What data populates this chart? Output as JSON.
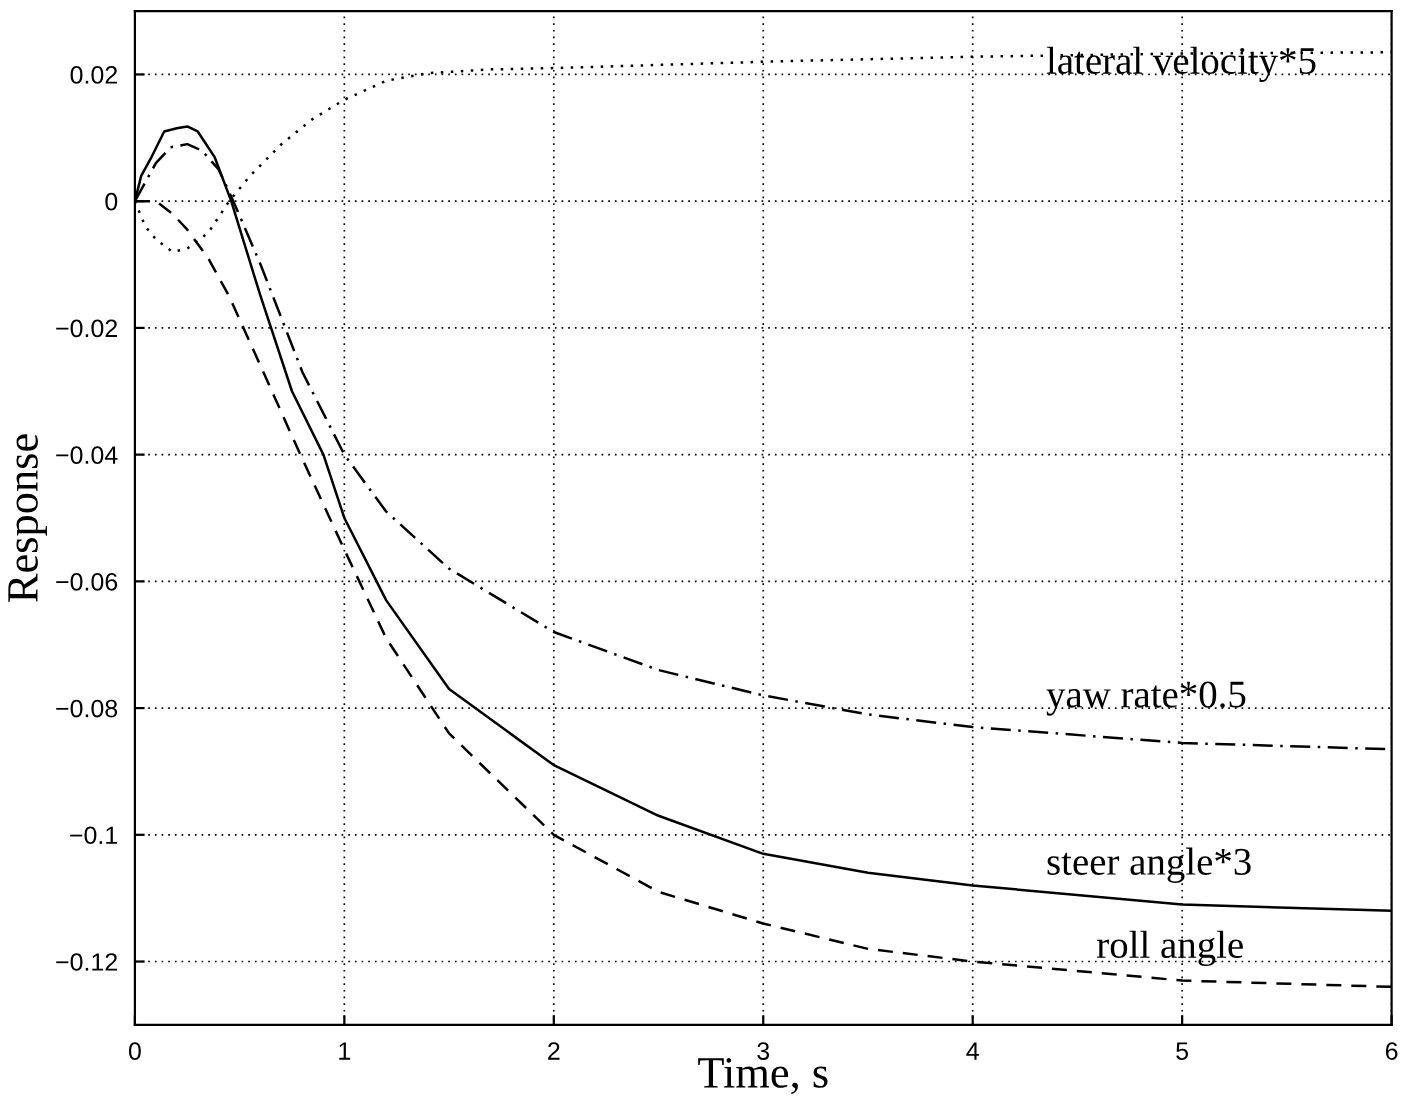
{
  "chart_data": {
    "type": "line",
    "xlabel": "Time, s",
    "ylabel": "Response",
    "xlim": [
      0,
      6
    ],
    "ylim": [
      -0.13,
      0.03
    ],
    "xticks": [
      0,
      1,
      2,
      3,
      4,
      5,
      6
    ],
    "yticks": [
      0.02,
      0,
      -0.02,
      -0.04,
      -0.06,
      -0.08,
      -0.1,
      -0.12
    ],
    "grid": true,
    "series": [
      {
        "color": "#000000",
        "line_style": "dotted",
        "x": [
          0,
          0.05,
          0.1,
          0.18,
          0.25,
          0.35,
          0.45,
          0.55,
          0.7,
          0.85,
          1,
          1.2,
          1.4,
          1.7,
          2,
          2.5,
          3,
          4,
          5,
          6
        ],
        "values": [
          0,
          -0.004,
          -0.006,
          -0.008,
          -0.0075,
          -0.005,
          0,
          0.004,
          0.009,
          0.013,
          0.016,
          0.019,
          0.0202,
          0.0208,
          0.021,
          0.0215,
          0.022,
          0.0228,
          0.0233,
          0.0235
        ]
      },
      {
        "color": "#000000",
        "line_style": "dashdot",
        "x": [
          0,
          0.05,
          0.1,
          0.17,
          0.25,
          0.32,
          0.4,
          0.47,
          0.6,
          0.8,
          1,
          1.2,
          1.5,
          2,
          2.5,
          3,
          3.5,
          4,
          5,
          6
        ],
        "values": [
          0,
          0.003,
          0.006,
          0.0085,
          0.009,
          0.008,
          0.005,
          0,
          -0.01,
          -0.027,
          -0.04,
          -0.049,
          -0.058,
          -0.068,
          -0.074,
          -0.078,
          -0.081,
          -0.083,
          -0.0855,
          -0.0865
        ]
      },
      {
        "color": "#000000",
        "line_style": "solid",
        "x": [
          0,
          0.03,
          0.08,
          0.14,
          0.2,
          0.25,
          0.3,
          0.38,
          0.46,
          0.6,
          0.75,
          0.9,
          1,
          1.2,
          1.5,
          2,
          2.5,
          3,
          3.5,
          4,
          5,
          6
        ],
        "values": [
          0,
          0.004,
          0.007,
          0.011,
          0.0115,
          0.0118,
          0.011,
          0.007,
          0,
          -0.015,
          -0.03,
          -0.04,
          -0.05,
          -0.063,
          -0.077,
          -0.089,
          -0.097,
          -0.103,
          -0.106,
          -0.108,
          -0.111,
          -0.112
        ]
      },
      {
        "color": "#000000",
        "line_style": "dashed",
        "x": [
          0,
          0.05,
          0.1,
          0.18,
          0.25,
          0.35,
          0.45,
          0.6,
          0.79,
          1,
          1.2,
          1.5,
          2,
          2.5,
          3,
          3.5,
          4,
          5,
          6
        ],
        "values": [
          0,
          0,
          0,
          -0.002,
          -0.0045,
          -0.009,
          -0.015,
          -0.026,
          -0.04,
          -0.055,
          -0.069,
          -0.084,
          -0.1,
          -0.109,
          -0.114,
          -0.118,
          -0.12,
          -0.123,
          -0.124
        ]
      }
    ],
    "annotations": [
      "lateral velocity*5",
      "yaw rate*0.5",
      "steer angle*3",
      "roll angle"
    ]
  }
}
